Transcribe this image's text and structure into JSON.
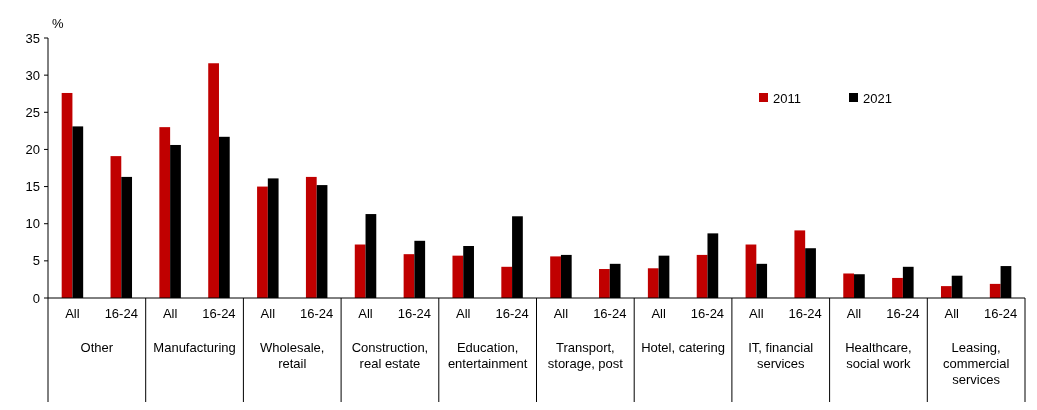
{
  "chart_data": {
    "type": "bar",
    "ylabel": "%",
    "categories": [
      "All",
      "16-24",
      "All",
      "16-24",
      "All",
      "16-24",
      "All",
      "16-24",
      "All",
      "16-24",
      "All",
      "16-24",
      "All",
      "16-24",
      "All",
      "16-24",
      "All",
      "16-24",
      "All",
      "16-24"
    ],
    "annotations": [
      "Other",
      "Manufacturing",
      "Wholesale, retail",
      "Construction, real estate",
      "Education, entertainment",
      "Transport, storage, post",
      "Hotel, catering",
      "IT, financial services",
      "Healthcare, social work",
      "Leasing, commercial services"
    ],
    "series": [
      {
        "name": "2011",
        "color": "#c00000",
        "values": [
          27.6,
          19.1,
          23.0,
          31.6,
          15.0,
          16.3,
          7.2,
          5.9,
          5.7,
          4.2,
          5.6,
          3.9,
          4.0,
          5.8,
          7.2,
          9.1,
          3.3,
          2.7,
          1.6,
          1.9
        ]
      },
      {
        "name": "2021",
        "color": "#000000",
        "values": [
          23.1,
          16.3,
          20.6,
          21.7,
          16.1,
          15.2,
          11.3,
          7.7,
          7.0,
          11.0,
          5.8,
          4.6,
          5.7,
          8.7,
          4.6,
          6.7,
          3.2,
          4.2,
          3.0,
          4.3
        ]
      }
    ],
    "ylim": [
      0,
      35
    ],
    "yticks": [
      0,
      5,
      10,
      15,
      20,
      25,
      30,
      35
    ],
    "legend": "top right",
    "grid": false
  }
}
